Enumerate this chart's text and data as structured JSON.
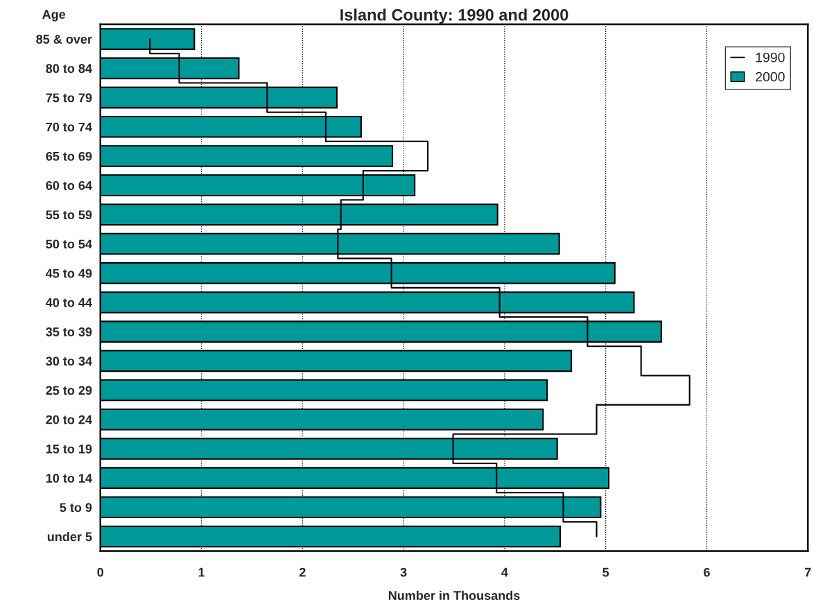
{
  "chart_data": {
    "type": "bar",
    "orientation": "horizontal",
    "title": "Island County: 1990 and 2000",
    "xlabel": "Number in Thousands",
    "ylabel": "Age",
    "categories": [
      "85 & over",
      "80 to 84",
      "75 to 79",
      "70 to 74",
      "65 to 69",
      "60 to 64",
      "55 to 59",
      "50 to 54",
      "45 to 49",
      "40 to 44",
      "35 to 39",
      "30 to 34",
      "25 to 29",
      "20 to 24",
      "15 to 19",
      "10 to 14",
      "5 to 9",
      "under 5"
    ],
    "series": [
      {
        "name": "1990",
        "type": "step",
        "color": "#000000",
        "values": [
          0.49,
          0.78,
          1.65,
          2.23,
          3.24,
          2.6,
          2.38,
          2.35,
          2.88,
          3.95,
          4.82,
          5.35,
          5.83,
          4.91,
          3.49,
          3.92,
          4.58,
          4.91
        ]
      },
      {
        "name": "2000",
        "color": "#009999",
        "values": [
          0.93,
          1.37,
          2.34,
          2.58,
          2.89,
          3.11,
          3.93,
          4.54,
          5.09,
          5.28,
          5.55,
          4.66,
          4.42,
          4.38,
          4.52,
          5.03,
          4.95,
          4.55
        ]
      }
    ],
    "xlim": [
      0,
      7
    ],
    "xticks": [
      0,
      1,
      2,
      3,
      4,
      5,
      6,
      7
    ],
    "grid": "x",
    "legend": "top right"
  }
}
